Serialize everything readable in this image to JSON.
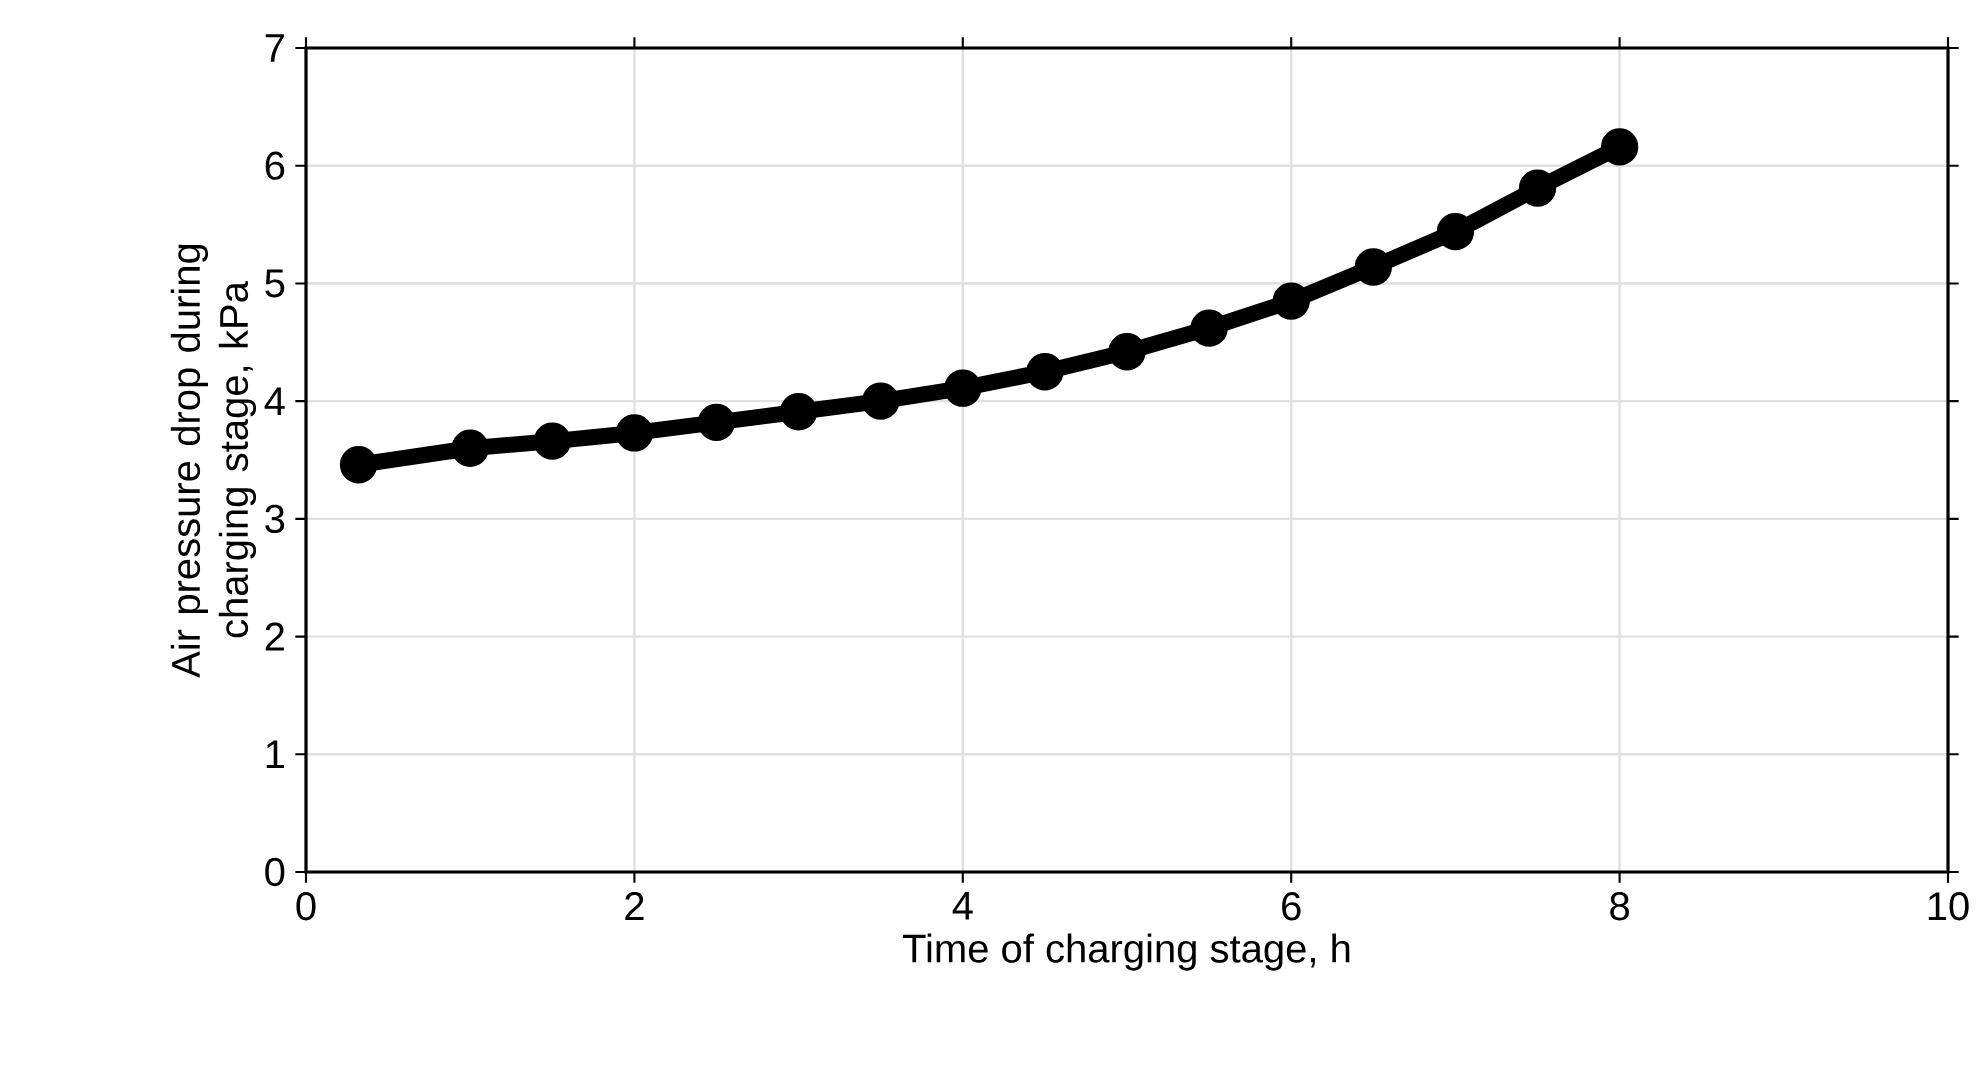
{
  "chart_data": {
    "type": "line",
    "xlabel": "Time of charging stage, h",
    "ylabel": "Air pressure drop during charging stage, kPa",
    "series": [
      {
        "color": "#000000",
        "x": [
          0.32,
          1,
          1.5,
          2,
          2.5,
          3,
          3.5,
          4,
          4.5,
          5,
          5.5,
          6,
          6.5,
          7,
          7.5,
          8
        ],
        "values": [
          3.46,
          3.6,
          3.66,
          3.73,
          3.82,
          3.91,
          4.0,
          4.11,
          4.25,
          4.42,
          4.62,
          4.85,
          5.14,
          5.44,
          5.81,
          6.16
        ]
      }
    ],
    "xlim": [
      0,
      10
    ],
    "xticks": [
      0,
      2,
      4,
      6,
      8,
      10
    ],
    "ylim": [
      0,
      7
    ],
    "yticks": [
      0,
      1,
      2,
      3,
      4,
      5,
      6,
      7
    ],
    "grid": true,
    "marker": "circle",
    "line_style": "solid"
  }
}
